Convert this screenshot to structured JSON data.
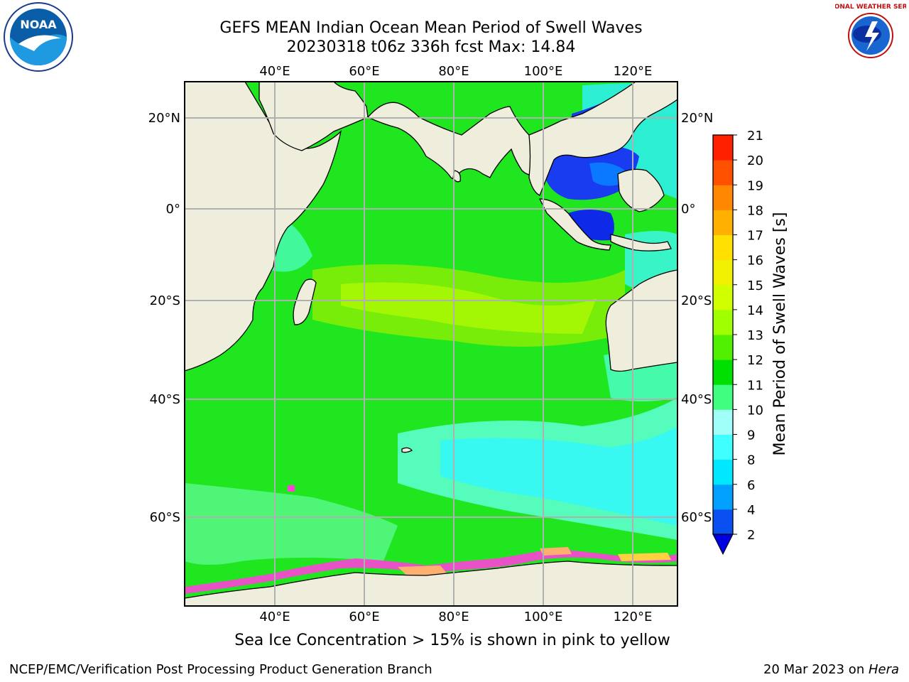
{
  "title_line1": "GEFS MEAN Indian Ocean Mean Period of Swell Waves",
  "title_line2": "20230318 t06z 336h fcst   Max: 14.84",
  "map": {
    "lon_ticks": [
      "40°E",
      "60°E",
      "80°E",
      "100°E",
      "120°E"
    ],
    "lat_ticks": [
      "20°N",
      "0°",
      "20°S",
      "40°S",
      "60°S"
    ],
    "land_color": "#efeedc",
    "grid_color": "#b0b0b0"
  },
  "colorbar": {
    "label": "Mean Period of Swell Waves [s]",
    "ticks": [
      "2",
      "4",
      "6",
      "8",
      "9",
      "10",
      "11",
      "12",
      "13",
      "14",
      "15",
      "16",
      "17",
      "18",
      "19",
      "20",
      "21"
    ],
    "colors": [
      "#0a50f0",
      "#00a0ff",
      "#00e8ff",
      "#40ffff",
      "#a0fff8",
      "#40ff80",
      "#00e000",
      "#50f000",
      "#a0ff00",
      "#d0ff00",
      "#f0f000",
      "#ffe000",
      "#ffb000",
      "#ff8800",
      "#ff5000",
      "#ff2000"
    ],
    "under_color": "#0000e0"
  },
  "logos": {
    "noaa_text": "NOAA",
    "nws_text": "NATIONAL WEATHER SERVICE"
  },
  "caption": "Sea Ice Concentration > 15% is shown in pink to yellow",
  "footer_left": "NCEP/EMC/Verification Post Processing Product Generation Branch",
  "footer_date": "20 Mar 2023 on ",
  "footer_host": "Hera"
}
